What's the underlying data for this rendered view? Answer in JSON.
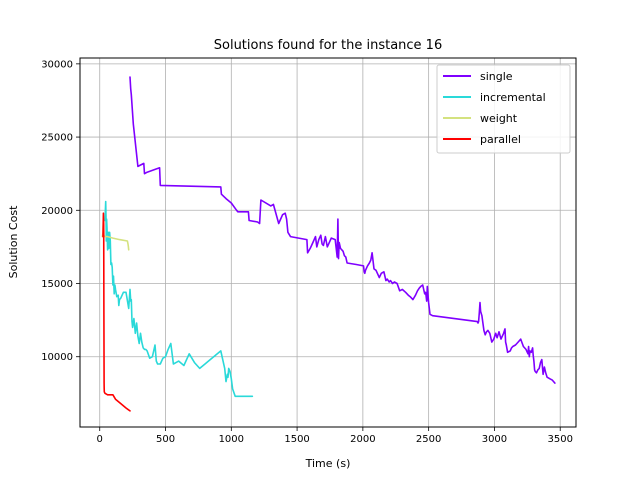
{
  "chart_data": {
    "type": "line",
    "title": "Solutions found for the instance 16",
    "xlabel": "Time (s)",
    "ylabel": "Solution Cost",
    "xlim": [
      -150,
      3620
    ],
    "ylim": [
      5200,
      30400
    ],
    "xticks": [
      0,
      500,
      1000,
      1500,
      2000,
      2500,
      3000,
      3500
    ],
    "yticks": [
      10000,
      15000,
      20000,
      25000,
      30000
    ],
    "grid": true,
    "legend_position": "top-right",
    "series": [
      {
        "name": "single",
        "color": "#7f00ff",
        "x": [
          230,
          235,
          240,
          255,
          290,
          335,
          340,
          360,
          455,
          460,
          920,
          925,
          960,
          1000,
          1040,
          1050,
          1130,
          1135,
          1200,
          1215,
          1225,
          1300,
          1320,
          1360,
          1390,
          1410,
          1420,
          1430,
          1450,
          1575,
          1580,
          1600,
          1620,
          1640,
          1650,
          1665,
          1680,
          1690,
          1700,
          1715,
          1730,
          1760,
          1790,
          1805,
          1810,
          1815,
          1820,
          1830,
          1850,
          1860,
          1870,
          1880,
          1950,
          2005,
          2010,
          2015,
          2020,
          2035,
          2050,
          2060,
          2070,
          2085,
          2100,
          2115,
          2125,
          2140,
          2160,
          2175,
          2185,
          2200,
          2210,
          2225,
          2240,
          2260,
          2280,
          2300,
          2325,
          2345,
          2360,
          2380,
          2400,
          2415,
          2430,
          2440,
          2455,
          2465,
          2470,
          2475,
          2480,
          2485,
          2490,
          2500,
          2510,
          2530,
          2870,
          2875,
          2880,
          2885,
          2890,
          2895,
          2905,
          2920,
          2930,
          2940,
          2950,
          2965,
          2980,
          2995,
          3010,
          3020,
          3035,
          3050,
          3060,
          3070,
          3080,
          3085,
          3090,
          3100,
          3120,
          3130,
          3140,
          3160,
          3180,
          3200,
          3220,
          3240,
          3250,
          3255,
          3260,
          3265,
          3270,
          3280,
          3290,
          3295,
          3300,
          3305,
          3310,
          3320,
          3330,
          3340,
          3350,
          3360,
          3370,
          3380,
          3390,
          3400,
          3420,
          3440,
          3460
        ],
        "y": [
          29100,
          28300,
          27900,
          25900,
          23000,
          23200,
          22500,
          22600,
          22900,
          21700,
          21600,
          21100,
          20800,
          20500,
          20000,
          19900,
          19900,
          19300,
          19200,
          19100,
          20700,
          20300,
          20400,
          19100,
          19700,
          19800,
          19400,
          18500,
          18200,
          18000,
          17100,
          17400,
          17800,
          18200,
          17500,
          18000,
          18300,
          17700,
          17600,
          18200,
          17500,
          18100,
          18000,
          16800,
          19400,
          16700,
          17800,
          17400,
          17200,
          16900,
          16800,
          16400,
          16300,
          16200,
          15800,
          15700,
          15900,
          16200,
          16400,
          16600,
          17100,
          16000,
          15900,
          15600,
          15400,
          15700,
          15800,
          15200,
          15300,
          15100,
          15200,
          15000,
          15100,
          15000,
          14500,
          14600,
          14400,
          14200,
          14100,
          13900,
          14200,
          14500,
          14700,
          14800,
          14900,
          14500,
          14300,
          14400,
          14200,
          13800,
          14800,
          13700,
          12900,
          12800,
          12400,
          12300,
          12400,
          13000,
          13700,
          13100,
          12800,
          11800,
          11500,
          11700,
          11800,
          11600,
          11000,
          11200,
          11600,
          11300,
          11700,
          11200,
          11400,
          11600,
          11900,
          11000,
          10800,
          10300,
          10400,
          10600,
          10700,
          10800,
          11000,
          11200,
          10700,
          10500,
          10300,
          10200,
          10700,
          10000,
          10400,
          10300,
          10600,
          10100,
          9700,
          9100,
          9000,
          8900,
          9100,
          9200,
          9600,
          9800,
          8800,
          9300,
          8900,
          8600,
          8500,
          8400,
          8200
        ]
      },
      {
        "name": "incremental",
        "color": "#2ad9d9",
        "x": [
          40,
          45,
          48,
          50,
          52,
          55,
          60,
          65,
          70,
          75,
          80,
          85,
          90,
          95,
          100,
          105,
          110,
          115,
          120,
          130,
          140,
          145,
          150,
          160,
          170,
          180,
          200,
          220,
          230,
          235,
          240,
          245,
          250,
          260,
          270,
          280,
          290,
          300,
          310,
          320,
          330,
          340,
          350,
          360,
          380,
          400,
          420,
          430,
          440,
          460,
          480,
          500,
          520,
          540,
          560,
          580,
          600,
          640,
          680,
          720,
          760,
          800,
          840,
          880,
          920,
          950,
          960,
          970,
          975,
          980,
          990,
          1000,
          1010,
          1030,
          1050,
          1100,
          1160
        ],
        "y": [
          19300,
          20600,
          19600,
          17900,
          19400,
          18800,
          17300,
          18500,
          17400,
          18500,
          17900,
          16300,
          16400,
          16100,
          14900,
          15500,
          14300,
          14900,
          14600,
          14100,
          14200,
          13500,
          13900,
          14000,
          14200,
          14400,
          14400,
          13300,
          14600,
          13800,
          13900,
          12400,
          12000,
          12600,
          11600,
          12300,
          11400,
          10900,
          11600,
          11000,
          10600,
          10500,
          10500,
          10400,
          9900,
          10000,
          10800,
          9700,
          9500,
          9500,
          9900,
          10000,
          10500,
          10900,
          9500,
          9600,
          9700,
          9400,
          10200,
          9600,
          9200,
          9500,
          9800,
          10100,
          10400,
          9200,
          8300,
          8800,
          8600,
          9200,
          9000,
          8500,
          7800,
          7300,
          7300,
          7300,
          7300
        ]
      },
      {
        "name": "weight",
        "color": "#d4e27f",
        "x": [
          20,
          25,
          28,
          32,
          40,
          60,
          100,
          150,
          210,
          215,
          218,
          220
        ],
        "y": [
          18200,
          18500,
          19600,
          18300,
          18200,
          18200,
          18100,
          18000,
          17900,
          17700,
          17500,
          17300
        ]
      },
      {
        "name": "parallel",
        "color": "#ff0000",
        "x": [
          25,
          28,
          30,
          32,
          33,
          34,
          35,
          40,
          60,
          100,
          120,
          160,
          200,
          230
        ],
        "y": [
          18200,
          19800,
          19000,
          13000,
          8200,
          7800,
          7600,
          7500,
          7400,
          7400,
          7100,
          6800,
          6500,
          6300
        ]
      }
    ]
  }
}
